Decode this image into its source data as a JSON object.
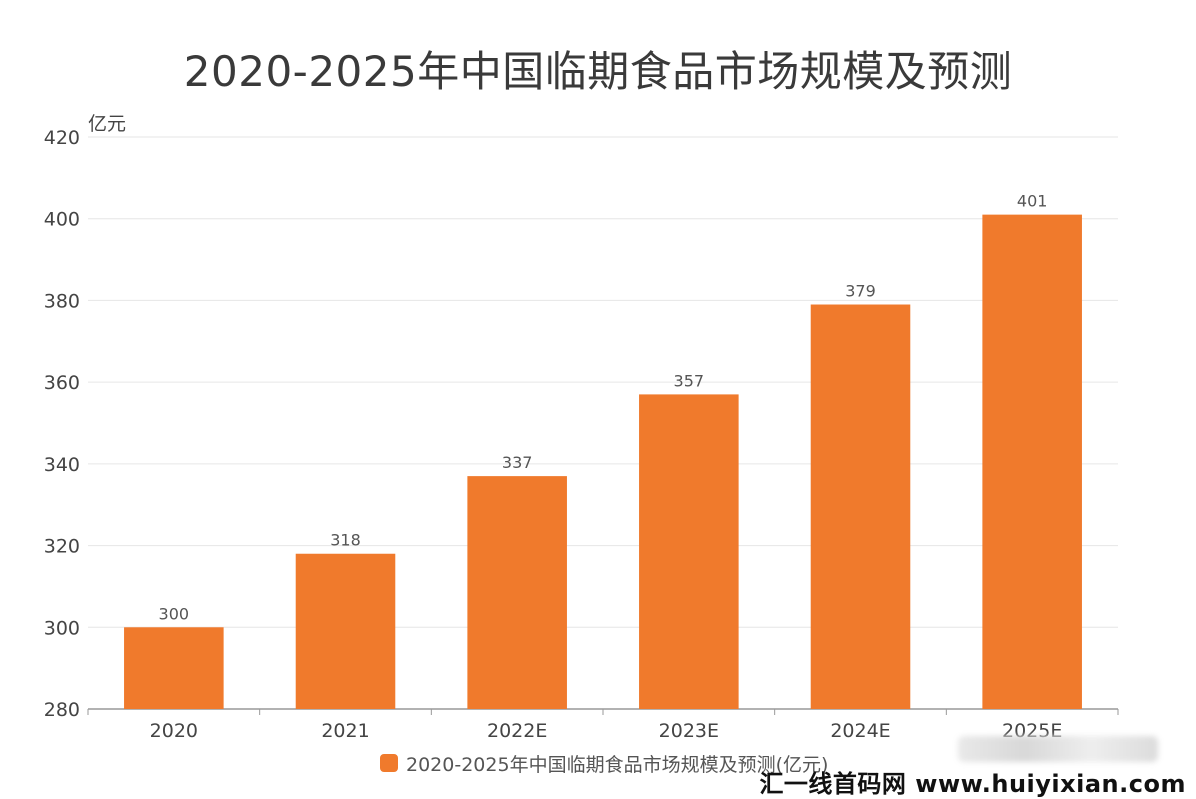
{
  "colors": {
    "bar": "#f07a2c",
    "grid": "#e6e6e6",
    "axis": "#999999"
  },
  "watermark": "汇一线首码网 www.huiyixian.com",
  "chart_data": {
    "type": "bar",
    "title": "2020-2025年中国临期食品市场规模及预测",
    "ylabel": "亿元",
    "xlabel": "",
    "ylim": [
      280,
      420
    ],
    "yticks": [
      280,
      300,
      320,
      340,
      360,
      380,
      400,
      420
    ],
    "grid": true,
    "legend_position": "bottom",
    "categories": [
      "2020",
      "2021",
      "2022E",
      "2023E",
      "2024E",
      "2025E"
    ],
    "series": [
      {
        "name": "2020-2025年中国临期食品市场规模及预测(亿元)",
        "values": [
          300,
          318,
          337,
          357,
          379,
          401
        ]
      }
    ]
  }
}
